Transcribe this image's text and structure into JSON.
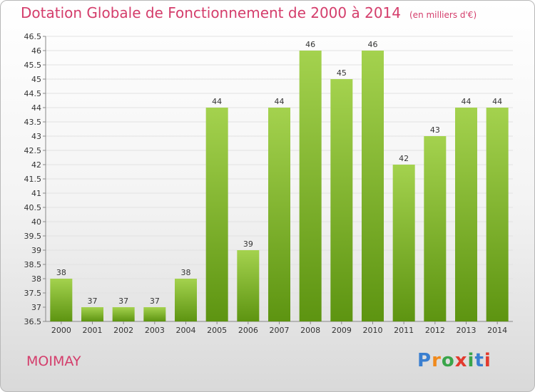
{
  "header": {
    "title": "Dotation Globale de Fonctionnement de 2000 à 2014",
    "subtitle": "(en milliers d'€)"
  },
  "footer": {
    "commune": "MOIMAY",
    "logo_letters": [
      "P",
      "r",
      "o",
      "x",
      "i",
      "t",
      "i"
    ],
    "logo_colors": [
      "#3a7fd0",
      "#f08a1c",
      "#3aa54a",
      "#e23a2e",
      "#3aa54a",
      "#3a7fd0",
      "#e23a2e"
    ]
  },
  "colors": {
    "bar_top": "#a4d24e",
    "bar_bottom": "#5d9411",
    "grid": "#e2e2e2",
    "axis": "#888888"
  },
  "chart_data": {
    "type": "bar",
    "title": "Dotation Globale de Fonctionnement de 2000 à 2014",
    "subtitle": "(en milliers d'€)",
    "xlabel": "",
    "ylabel": "",
    "categories": [
      "2000",
      "2001",
      "2002",
      "2003",
      "2004",
      "2005",
      "2006",
      "2007",
      "2008",
      "2009",
      "2010",
      "2011",
      "2012",
      "2013",
      "2014"
    ],
    "values": [
      38,
      37,
      37,
      37,
      38,
      44,
      39,
      44,
      46,
      45,
      46,
      42,
      43,
      44,
      44
    ],
    "ylim": [
      36.5,
      46.5
    ],
    "yticks": [
      "36.5",
      "37",
      "37.5",
      "38",
      "38.5",
      "39",
      "39.5",
      "40",
      "40.5",
      "41",
      "41.5",
      "42",
      "42.5",
      "43",
      "43.5",
      "44",
      "44.5",
      "45",
      "45.5",
      "46",
      "46.5"
    ],
    "grid": true
  }
}
